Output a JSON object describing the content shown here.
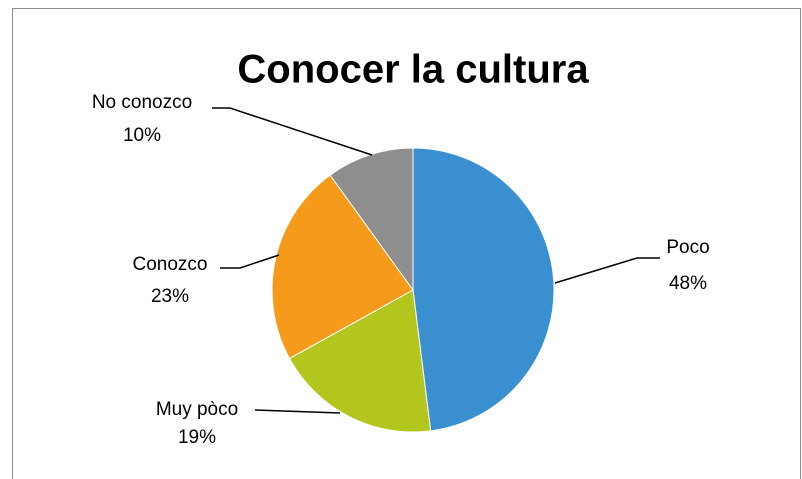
{
  "chart_data": {
    "type": "pie",
    "title": "Conocer la cultura",
    "categories": [
      "Poco",
      "Muy pòco",
      "Conozco",
      "No conozco"
    ],
    "values": [
      48,
      19,
      23,
      10
    ],
    "value_labels": [
      "48%",
      "19%",
      "23%",
      "10%"
    ],
    "colors": [
      "#3a8fd1",
      "#b3c61e",
      "#f59a1b",
      "#8e8e8e"
    ]
  }
}
